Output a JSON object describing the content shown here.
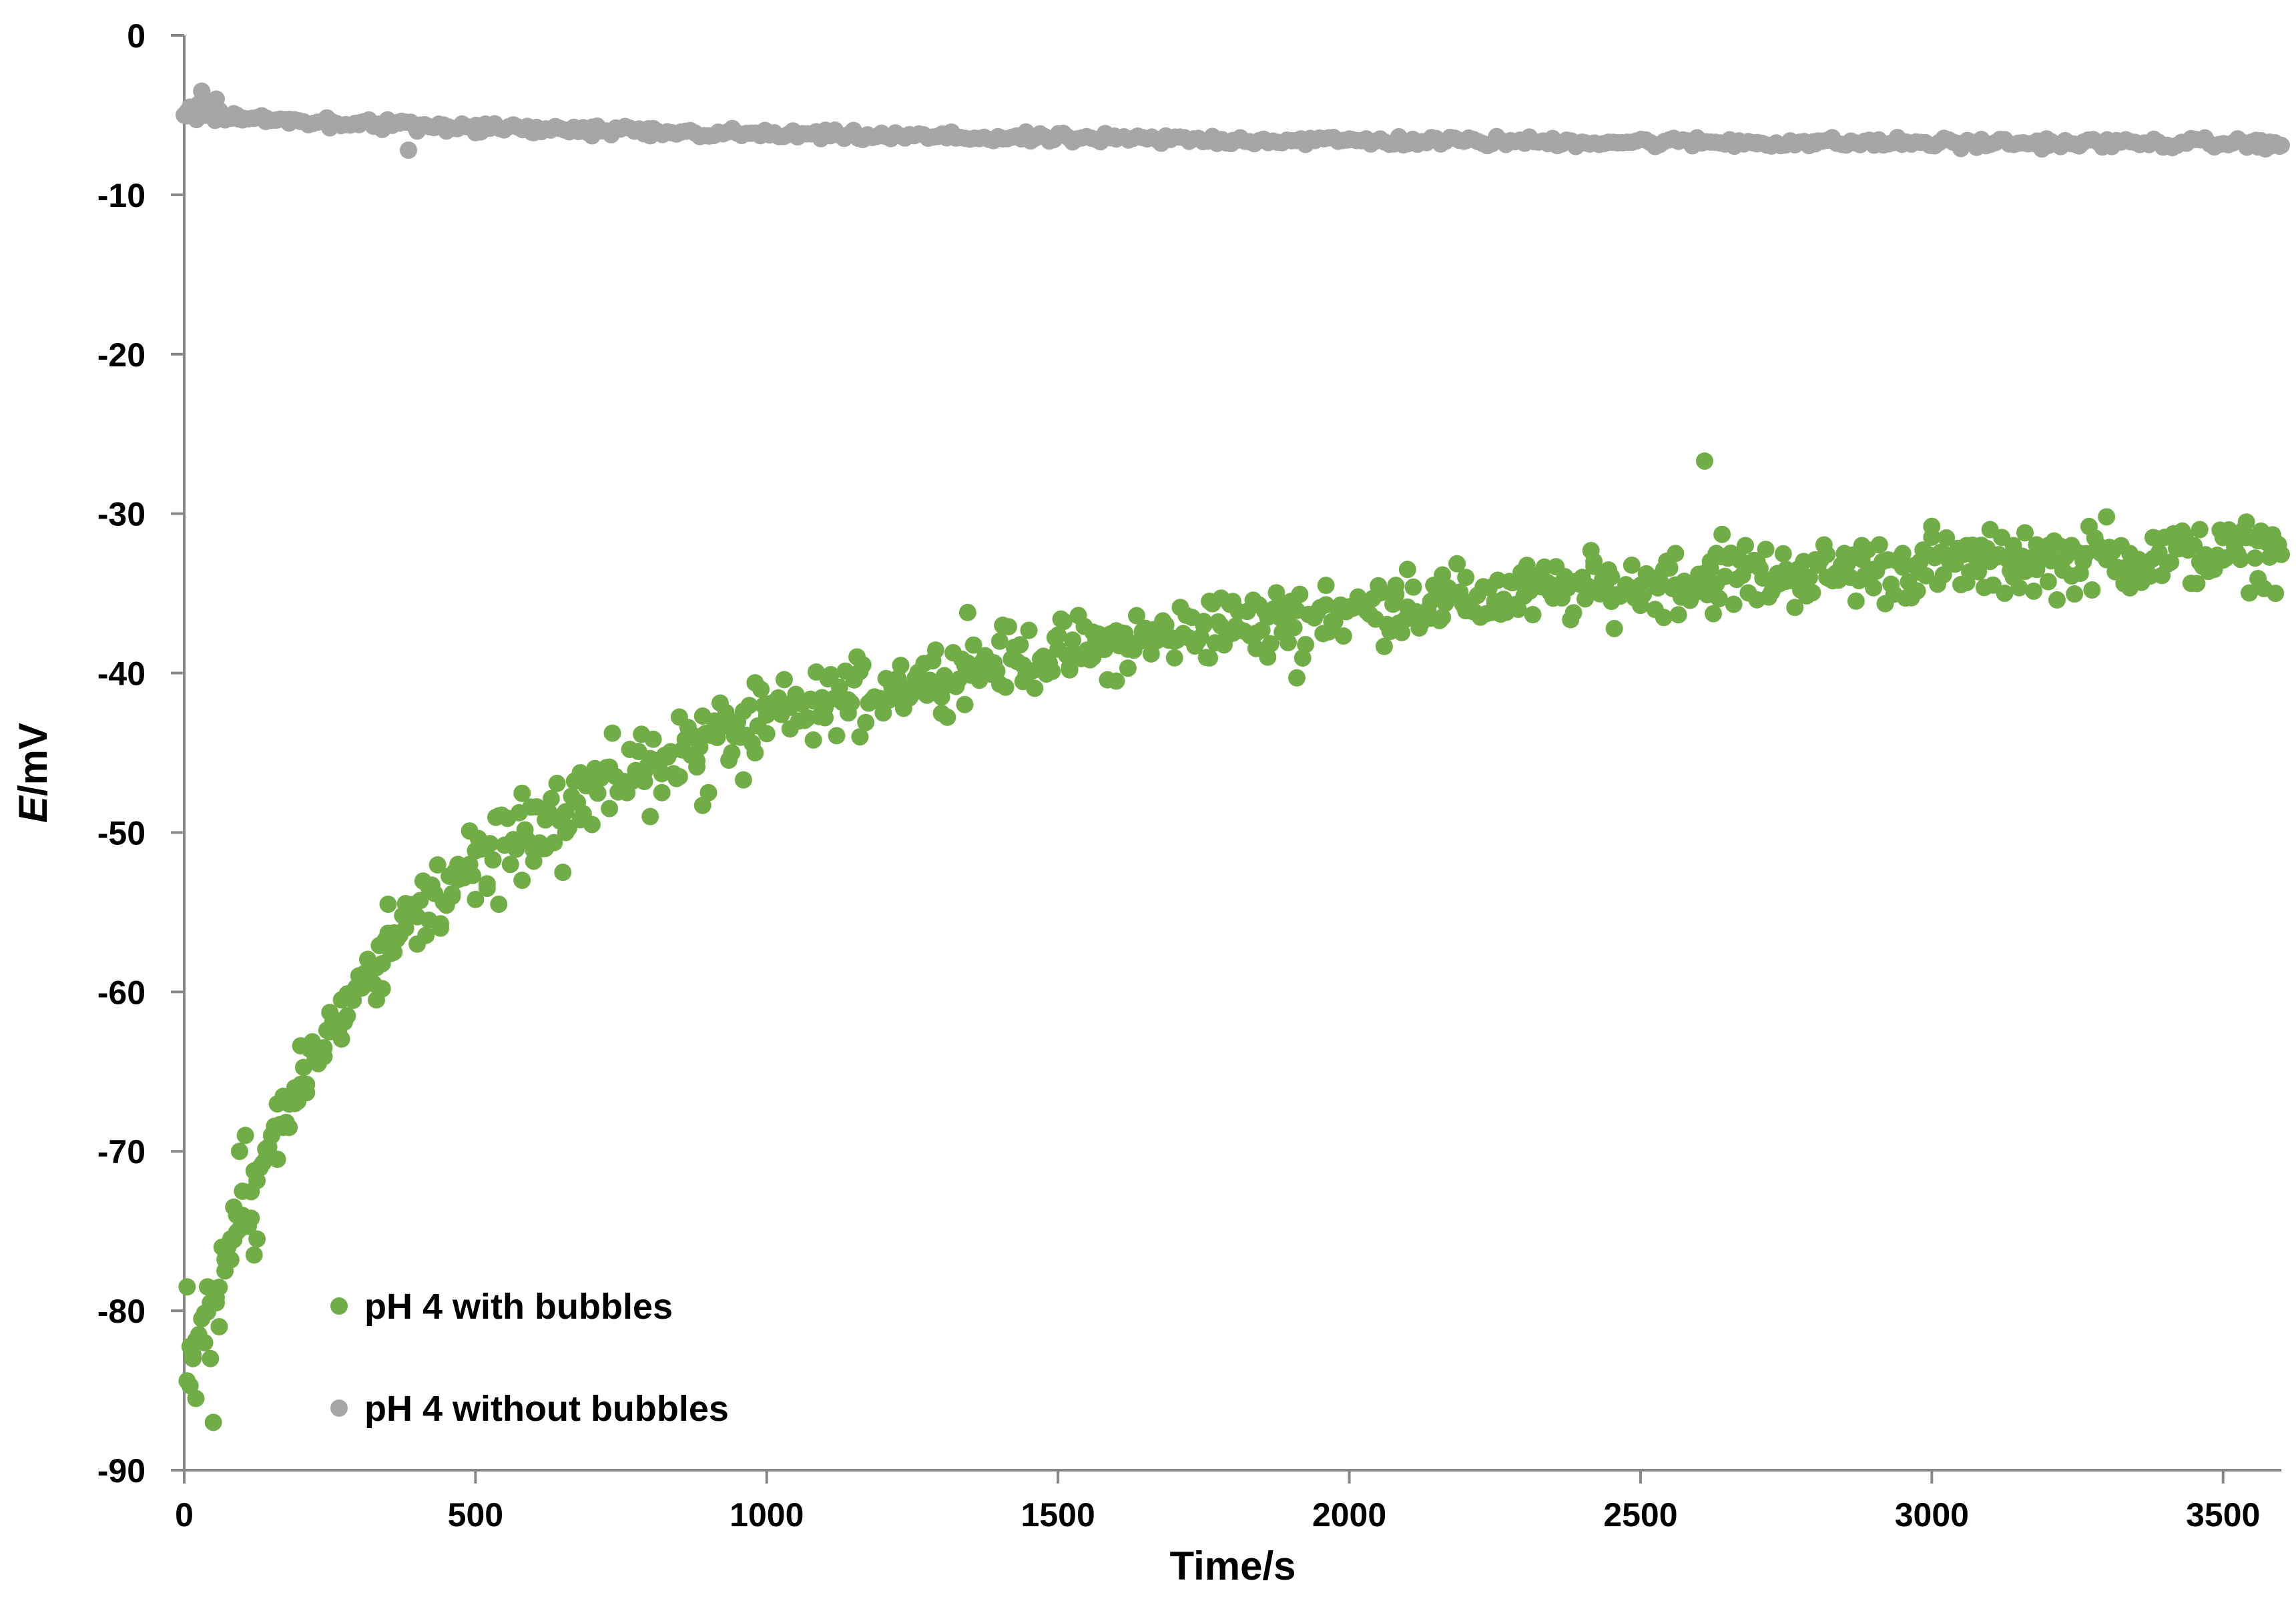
{
  "chart_data": {
    "type": "scatter",
    "xlabel": "Time/s",
    "ylabel_italic": "E",
    "ylabel_rest": "/mV",
    "xlim": [
      0,
      3600
    ],
    "ylim": [
      -90,
      0
    ],
    "x_ticks": [
      0,
      500,
      1000,
      1500,
      2000,
      2500,
      3000,
      3500
    ],
    "y_ticks": [
      0,
      -10,
      -20,
      -30,
      -40,
      -50,
      -60,
      -70,
      -80,
      -90
    ],
    "grid": false,
    "legend_position": "bottom-left",
    "series": [
      {
        "name": "pH 4 with bubbles",
        "color": "#70ad47",
        "trend": {
          "a": -86.0,
          "t0": 32,
          "k": 1.35,
          "tau": 2.2,
          "start_x": 5,
          "end_x": 3600,
          "step": 5
        },
        "points": [
          [
            5,
            -78.5
          ],
          [
            10,
            -84.7
          ],
          [
            15,
            -83.0
          ],
          [
            20,
            -85.5
          ],
          [
            25,
            -81.5
          ],
          [
            30,
            -80.5
          ],
          [
            35,
            -82.0
          ],
          [
            40,
            -78.5
          ],
          [
            45,
            -83.0
          ],
          [
            50,
            -87.0
          ],
          [
            55,
            -79.5
          ],
          [
            60,
            -81.0
          ],
          [
            70,
            -77.5
          ],
          [
            80,
            -76.8
          ],
          [
            85,
            -73.5
          ],
          [
            90,
            -74.0
          ],
          [
            95,
            -70.0
          ],
          [
            100,
            -72.5
          ],
          [
            105,
            -69.0
          ],
          [
            115,
            -74.2
          ],
          [
            120,
            -76.5
          ],
          [
            125,
            -75.5
          ],
          [
            130,
            -71.0
          ],
          [
            140,
            -70.5
          ],
          [
            150,
            -69.0
          ],
          [
            160,
            -70.5
          ],
          [
            170,
            -68.5
          ],
          [
            180,
            -68.5
          ],
          [
            190,
            -67.0
          ],
          [
            200,
            -65.8
          ],
          [
            210,
            -65.8
          ],
          [
            220,
            -63.2
          ],
          [
            230,
            -64.5
          ],
          [
            240,
            -63.5
          ],
          [
            250,
            -62.5
          ],
          [
            260,
            -61.8
          ],
          [
            270,
            -60.5
          ],
          [
            280,
            -61.5
          ],
          [
            290,
            -60.2
          ],
          [
            300,
            -59.0
          ],
          [
            320,
            -58.5
          ],
          [
            330,
            -60.5
          ],
          [
            340,
            -59.8
          ],
          [
            350,
            -54.5
          ],
          [
            355,
            -56.8
          ],
          [
            360,
            -57.5
          ],
          [
            380,
            -56.0
          ],
          [
            400,
            -57.0
          ],
          [
            420,
            -55.5
          ],
          [
            440,
            -56.0
          ],
          [
            460,
            -54.0
          ],
          [
            470,
            -52.0
          ],
          [
            490,
            -52.0
          ],
          [
            500,
            -54.2
          ],
          [
            520,
            -53.5
          ],
          [
            540,
            -54.5
          ],
          [
            560,
            -52.0
          ],
          [
            580,
            -53.0
          ],
          [
            600,
            -51.8
          ],
          [
            620,
            -51.0
          ],
          [
            650,
            -52.5
          ],
          [
            655,
            -50.0
          ],
          [
            680,
            -49.2
          ],
          [
            700,
            -49.5
          ],
          [
            730,
            -48.5
          ],
          [
            760,
            -47.5
          ],
          [
            790,
            -46.8
          ],
          [
            800,
            -49.0
          ],
          [
            820,
            -47.5
          ],
          [
            850,
            -46.5
          ],
          [
            880,
            -45.5
          ],
          [
            890,
            -48.3
          ],
          [
            900,
            -47.5
          ],
          [
            940,
            -45.0
          ],
          [
            960,
            -46.7
          ],
          [
            980,
            -45.0
          ],
          [
            1000,
            -43.8
          ],
          [
            1040,
            -43.5
          ],
          [
            1080,
            -44.2
          ],
          [
            1100,
            -42.8
          ],
          [
            1140,
            -42.5
          ],
          [
            1160,
            -44.0
          ],
          [
            1200,
            -42.5
          ],
          [
            1240,
            -41.5
          ],
          [
            1270,
            -40.5
          ],
          [
            1300,
            -41.5
          ],
          [
            1340,
            -39.5
          ],
          [
            1345,
            -36.2
          ],
          [
            1380,
            -40.0
          ],
          [
            1400,
            -38.0
          ],
          [
            1405,
            -37.0
          ],
          [
            1440,
            -39.5
          ],
          [
            1500,
            -38.5
          ],
          [
            1520,
            -39.8
          ],
          [
            1560,
            -39.0
          ],
          [
            1580,
            -38.0
          ],
          [
            1600,
            -40.5
          ],
          [
            1620,
            -38.5
          ],
          [
            1660,
            -38.8
          ],
          [
            1700,
            -38.0
          ],
          [
            1750,
            -37.0
          ],
          [
            1760,
            -35.5
          ],
          [
            1780,
            -35.3
          ],
          [
            1800,
            -37.5
          ],
          [
            1840,
            -37.5
          ],
          [
            1860,
            -39.0
          ],
          [
            1880,
            -36.5
          ],
          [
            1890,
            -37.3
          ],
          [
            1900,
            -35.5
          ],
          [
            1910,
            -40.3
          ],
          [
            1940,
            -36.5
          ],
          [
            1960,
            -34.5
          ],
          [
            2000,
            -36.0
          ],
          [
            2050,
            -35.0
          ],
          [
            2080,
            -34.5
          ],
          [
            2100,
            -33.5
          ],
          [
            2140,
            -35.5
          ],
          [
            2160,
            -36.5
          ],
          [
            2200,
            -34.0
          ],
          [
            2250,
            -35.5
          ],
          [
            2300,
            -34.5
          ],
          [
            2350,
            -34.5
          ],
          [
            2400,
            -34.0
          ],
          [
            2420,
            -33.0
          ],
          [
            2450,
            -35.5
          ],
          [
            2480,
            -35.0
          ],
          [
            2500,
            -34.5
          ],
          [
            2540,
            -33.5
          ],
          [
            2560,
            -32.5
          ],
          [
            2580,
            -35.0
          ],
          [
            2600,
            -33.8
          ],
          [
            2610,
            -26.7
          ],
          [
            2620,
            -33.0
          ],
          [
            2630,
            -32.5
          ],
          [
            2640,
            -31.3
          ],
          [
            2680,
            -32.0
          ],
          [
            2700,
            -33.0
          ],
          [
            2750,
            -33.5
          ],
          [
            2780,
            -33.0
          ],
          [
            2820,
            -34.0
          ],
          [
            2850,
            -32.5
          ],
          [
            2880,
            -32.0
          ],
          [
            2900,
            -33.5
          ],
          [
            2950,
            -32.5
          ],
          [
            2980,
            -33.0
          ],
          [
            3000,
            -30.8
          ],
          [
            3020,
            -32.5
          ],
          [
            3060,
            -32.0
          ],
          [
            3100,
            -33.0
          ],
          [
            3140,
            -32.0
          ],
          [
            3160,
            -31.2
          ],
          [
            3180,
            -33.5
          ],
          [
            3200,
            -32.0
          ],
          [
            3240,
            -32.0
          ],
          [
            3260,
            -33.0
          ],
          [
            3300,
            -30.2
          ],
          [
            3310,
            -32.2
          ],
          [
            3340,
            -32.5
          ],
          [
            3380,
            -31.5
          ],
          [
            3420,
            -31.5
          ],
          [
            3460,
            -31.0
          ],
          [
            3500,
            -31.5
          ],
          [
            3540,
            -31.5
          ],
          [
            3560,
            -31.7
          ],
          [
            3590,
            -31.8
          ]
        ]
      },
      {
        "name": "pH 4 without bubbles",
        "color": "#a6a6a6",
        "trend": {
          "a": -5.0,
          "b": -1.8,
          "tau": 2.0,
          "start_x": 5,
          "end_x": 3600,
          "step": 8
        },
        "points": [
          [
            0,
            -5.0
          ],
          [
            5,
            -4.8
          ],
          [
            10,
            -4.5
          ],
          [
            15,
            -4.7
          ],
          [
            20,
            -4.5
          ],
          [
            25,
            -4.3
          ],
          [
            30,
            -3.5
          ],
          [
            35,
            -4.2
          ],
          [
            40,
            -4.8
          ],
          [
            45,
            -4.5
          ],
          [
            50,
            -4.4
          ],
          [
            55,
            -4.0
          ],
          [
            60,
            -4.8
          ],
          [
            65,
            -5.0
          ],
          [
            70,
            -5.3
          ],
          [
            80,
            -5.2
          ],
          [
            90,
            -5.0
          ],
          [
            100,
            -5.3
          ],
          [
            120,
            -5.2
          ],
          [
            140,
            -5.4
          ],
          [
            160,
            -5.3
          ],
          [
            180,
            -5.5
          ],
          [
            200,
            -5.4
          ],
          [
            250,
            -5.8
          ],
          [
            300,
            -5.6
          ],
          [
            340,
            -5.9
          ],
          [
            370,
            -5.5
          ],
          [
            385,
            -7.2
          ],
          [
            400,
            -6.0
          ],
          [
            450,
            -6.0
          ],
          [
            500,
            -6.1
          ],
          [
            600,
            -6.1
          ],
          [
            700,
            -6.3
          ],
          [
            800,
            -6.3
          ],
          [
            900,
            -6.3
          ],
          [
            1000,
            -6.2
          ],
          [
            1200,
            -6.3
          ],
          [
            1400,
            -6.4
          ],
          [
            1500,
            -6.3
          ],
          [
            1600,
            -6.5
          ],
          [
            1800,
            -6.6
          ],
          [
            2000,
            -6.5
          ],
          [
            2100,
            -6.8
          ],
          [
            2200,
            -6.6
          ],
          [
            2400,
            -6.7
          ],
          [
            2600,
            -6.6
          ],
          [
            2700,
            -6.8
          ],
          [
            2800,
            -6.8
          ],
          [
            3000,
            -6.9
          ],
          [
            3050,
            -7.1
          ],
          [
            3200,
            -6.9
          ],
          [
            3300,
            -6.9
          ],
          [
            3400,
            -6.9
          ],
          [
            3500,
            -6.8
          ],
          [
            3560,
            -7.0
          ],
          [
            3580,
            -6.7
          ],
          [
            3600,
            -6.9
          ]
        ]
      }
    ]
  }
}
